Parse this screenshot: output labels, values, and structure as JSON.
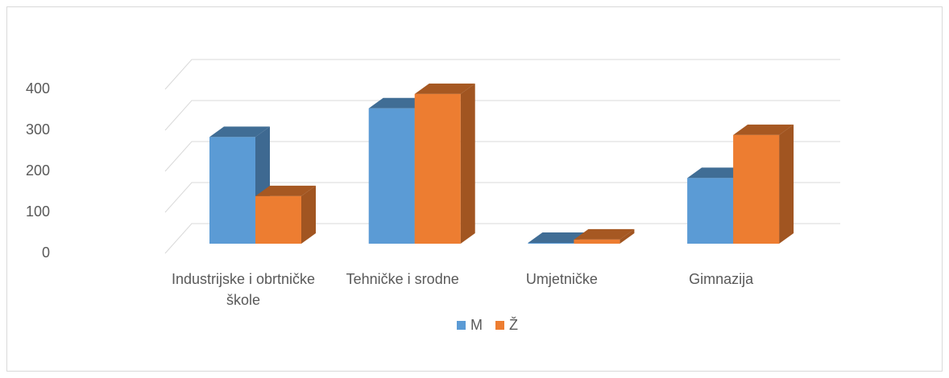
{
  "chart_data": {
    "type": "bar3d",
    "categories": [
      "Industrijske i obrtničke škole",
      "Tehničke i srodne",
      "Umjetničke",
      "Gimnazija"
    ],
    "series": [
      {
        "name": "M",
        "color": "#5b9bd5",
        "values": [
          260,
          330,
          2,
          160
        ]
      },
      {
        "name": "Ž",
        "color": "#ed7d31",
        "values": [
          116,
          365,
          10,
          265
        ]
      }
    ],
    "ylim": [
      0,
      400
    ],
    "yticks": [
      0,
      100,
      200,
      300,
      400
    ],
    "grid": true,
    "legend": "bottom"
  }
}
